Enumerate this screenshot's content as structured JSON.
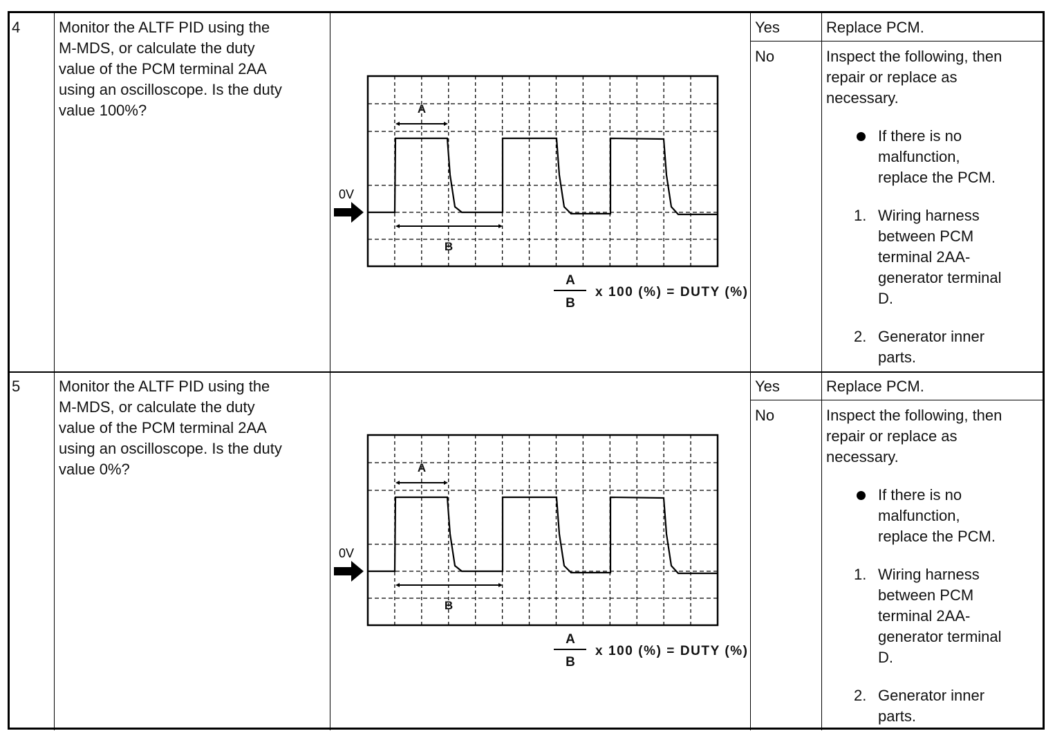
{
  "rows": [
    {
      "step": "4",
      "question": "Monitor the ALTF PID using the\nM-MDS, or calculate the duty\nvalue of the PCM terminal 2AA\nusing an oscilloscope. Is the duty\nvalue 100%?",
      "yes_label": "Yes",
      "no_label": "No",
      "yes_action": "Replace PCM.",
      "no_action_intro": "Inspect the following, then\nrepair or replace as\nnecessary.",
      "bullet": "If there is no\nmalfunction,\nreplace the PCM.",
      "items": [
        {
          "marker": "1.",
          "text": "Wiring harness\nbetween PCM\nterminal 2AA-\ngenerator terminal\nD."
        },
        {
          "marker": "2.",
          "text": "Generator inner\nparts."
        }
      ],
      "figure": {
        "zero_label": "0V",
        "a_label": "A",
        "b_label": "B",
        "fraction_num": "A",
        "fraction_den": "B",
        "formula": "x 100 (%) = DUTY (%)"
      }
    },
    {
      "step": "5",
      "question": "Monitor the ALTF PID using the\nM-MDS, or calculate the duty\nvalue of the PCM terminal 2AA\nusing an oscilloscope. Is the duty\nvalue 0%?",
      "yes_label": "Yes",
      "no_label": "No",
      "yes_action": "Replace PCM.",
      "no_action_intro": "Inspect the following, then\nrepair or replace as\nnecessary.",
      "bullet": "If there is no\nmalfunction,\nreplace the PCM.",
      "items": [
        {
          "marker": "1.",
          "text": "Wiring harness\nbetween PCM\nterminal 2AA-\ngenerator terminal\nD."
        },
        {
          "marker": "2.",
          "text": "Generator inner\nparts."
        }
      ],
      "figure": {
        "zero_label": "0V",
        "a_label": "A",
        "b_label": "B",
        "fraction_num": "A",
        "fraction_den": "B",
        "formula": "x 100 (%) = DUTY (%)"
      }
    }
  ]
}
